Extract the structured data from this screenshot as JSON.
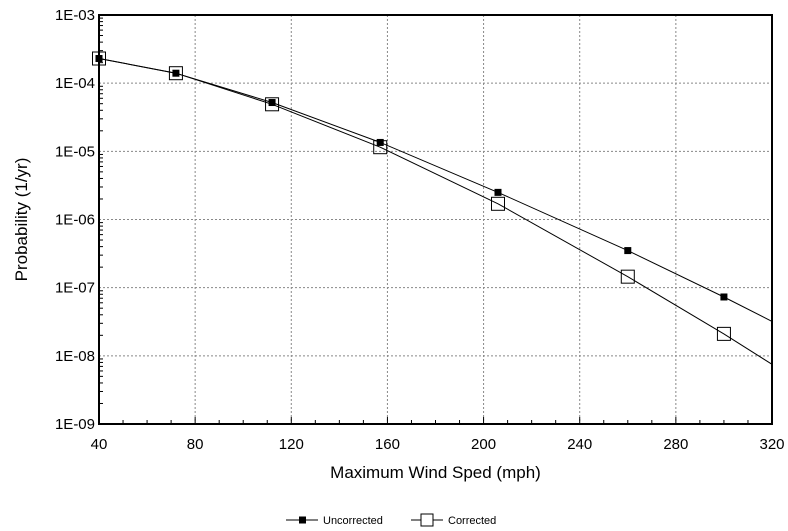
{
  "chart_data": {
    "type": "line",
    "xlabel": "Maximum Wind Sped (mph)",
    "ylabel": "Probability (1/yr)",
    "xlim": [
      40,
      320
    ],
    "ylim": [
      1e-09,
      0.001
    ],
    "y_scale": "log",
    "grid": true,
    "legend_placement": "bottom-center",
    "x_ticks": [
      40,
      80,
      120,
      160,
      200,
      240,
      280,
      320
    ],
    "x_tick_labels": [
      "40",
      "80",
      "120",
      "160",
      "200",
      "240",
      "280",
      "320"
    ],
    "y_ticks": [
      1e-09,
      1e-08,
      1e-07,
      1e-06,
      1e-05,
      0.0001,
      0.001
    ],
    "y_tick_labels": [
      "1E-09",
      "1E-08",
      "1E-07",
      "1E-06",
      "1E-05",
      "1E-04",
      "1E-03"
    ],
    "series": [
      {
        "name": "Uncorrected",
        "marker": "filled-square",
        "color": "#000000",
        "x": [
          40,
          72,
          112,
          157,
          206,
          260,
          300,
          320
        ],
        "y": [
          0.00023,
          0.00014,
          5.2e-05,
          1.35e-05,
          2.5e-06,
          3.5e-07,
          7.3e-08,
          3.2e-08
        ],
        "marker_count": 7
      },
      {
        "name": "Corrected",
        "marker": "open-square",
        "color": "#000000",
        "x": [
          40,
          72,
          112,
          157,
          206,
          260,
          300,
          320
        ],
        "y": [
          0.00023,
          0.00014,
          4.9e-05,
          1.15e-05,
          1.7e-06,
          1.45e-07,
          2.1e-08,
          7.5e-09
        ],
        "marker_count": 7
      }
    ]
  }
}
